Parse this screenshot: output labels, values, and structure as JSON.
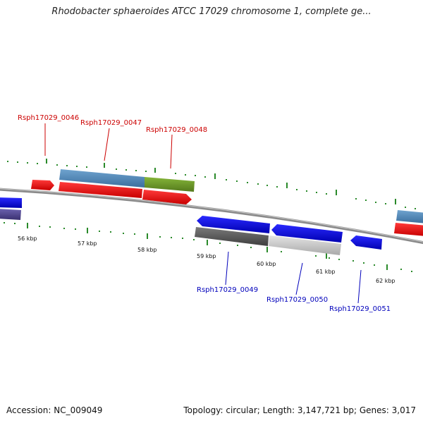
{
  "title": "Rhodobacter sphaeroides ATCC 17029 chromosome 1, complete ge...",
  "footer": {
    "accession": "Accession: NC_009049",
    "summary": "Topology: circular; Length: 3,147,721 bp; Genes: 3,017"
  },
  "scale": {
    "unit": "kbp",
    "labels": [
      "56 kbp",
      "57 kbp",
      "58 kbp",
      "59 kbp",
      "60 kbp",
      "61 kbp",
      "62 kbp"
    ]
  },
  "genes_forward": [
    {
      "locus_tag": "Rsph17029_0046",
      "color": "#cc0000"
    },
    {
      "locus_tag": "Rsph17029_0047",
      "color": "#cc0000"
    },
    {
      "locus_tag": "Rsph17029_0048",
      "color": "#cc0000"
    }
  ],
  "genes_reverse": [
    {
      "locus_tag": "Rsph17029_0049",
      "color": "#0000bb"
    },
    {
      "locus_tag": "Rsph17029_0050",
      "color": "#0000bb"
    },
    {
      "locus_tag": "Rsph17029_0051",
      "color": "#0000bb"
    }
  ],
  "colors": {
    "forward_gene": "#ee0000",
    "reverse_gene": "#0000ee",
    "backbone": "#888888",
    "tick_marks": "#2a8a2a",
    "steelblue_feature": "#4f86b8",
    "olive_feature": "#6f9a2a",
    "dark_gray_feature": "#555555",
    "light_gray_feature": "#cccccc",
    "purple_feature": "#4a3f8a"
  }
}
